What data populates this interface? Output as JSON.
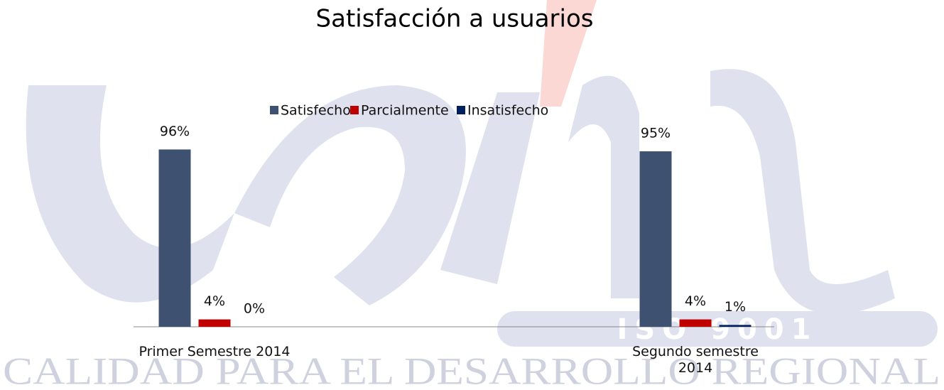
{
  "chart_data": {
    "type": "bar",
    "title": "Satisfacción a usuarios",
    "categories": [
      "Primer  Semestre 2014",
      "Segundo semestre 2014"
    ],
    "series": [
      {
        "name": "Satisfecho",
        "color": "#3f5170",
        "values": [
          96,
          95
        ],
        "value_labels": [
          "96%",
          "95%"
        ]
      },
      {
        "name": "Parcialmente",
        "color": "#c00000",
        "values": [
          4,
          4
        ],
        "value_labels": [
          "4%",
          "4%"
        ]
      },
      {
        "name": "Insatisfecho",
        "color": "#002060",
        "values": [
          0,
          1
        ],
        "value_labels": [
          "0%",
          "1%"
        ]
      }
    ],
    "ylim": [
      0,
      100
    ],
    "grid": false,
    "legend": "top"
  },
  "watermark": {
    "motto": "CALIDAD PARA EL DESARROLLO REGIONAL",
    "badge": "ISO 9001"
  }
}
